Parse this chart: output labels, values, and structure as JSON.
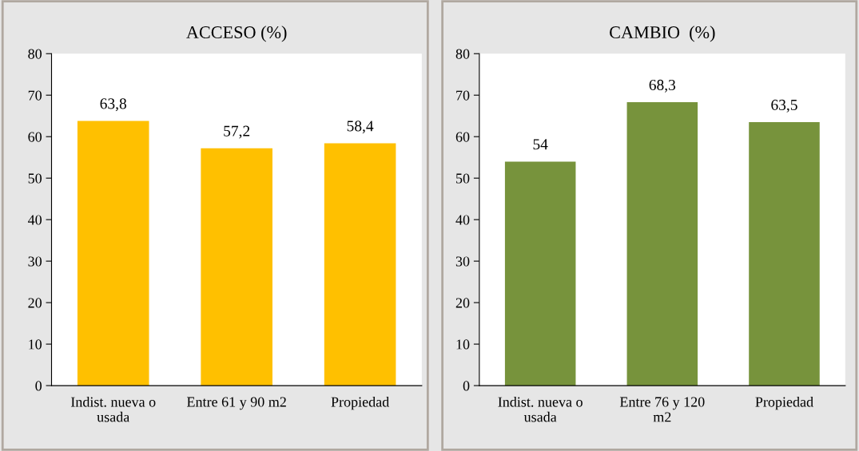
{
  "chart_data": [
    {
      "type": "bar",
      "title": "ACCESO (%)",
      "categories": [
        "Indist. nueva o\nusada",
        "Entre 61 y 90 m2",
        "Propiedad"
      ],
      "values": [
        63.8,
        57.2,
        58.4
      ],
      "value_labels": [
        "63,8",
        "57,2",
        "58,4"
      ],
      "color": "#ffc000",
      "ylim": [
        0,
        80
      ],
      "yticks": [
        0,
        10,
        20,
        30,
        40,
        50,
        60,
        70,
        80
      ],
      "grid": false,
      "legend": false
    },
    {
      "type": "bar",
      "title": "CAMBIO  (%)",
      "categories": [
        "Indist. nueva o\nusada",
        "Entre 76 y 120\nm2",
        "Propiedad"
      ],
      "values": [
        54,
        68.3,
        63.5
      ],
      "value_labels": [
        "54",
        "68,3",
        "63,5"
      ],
      "color": "#77933c",
      "ylim": [
        0,
        80
      ],
      "yticks": [
        0,
        10,
        20,
        30,
        40,
        50,
        60,
        70,
        80
      ],
      "grid": false,
      "legend": false
    }
  ]
}
